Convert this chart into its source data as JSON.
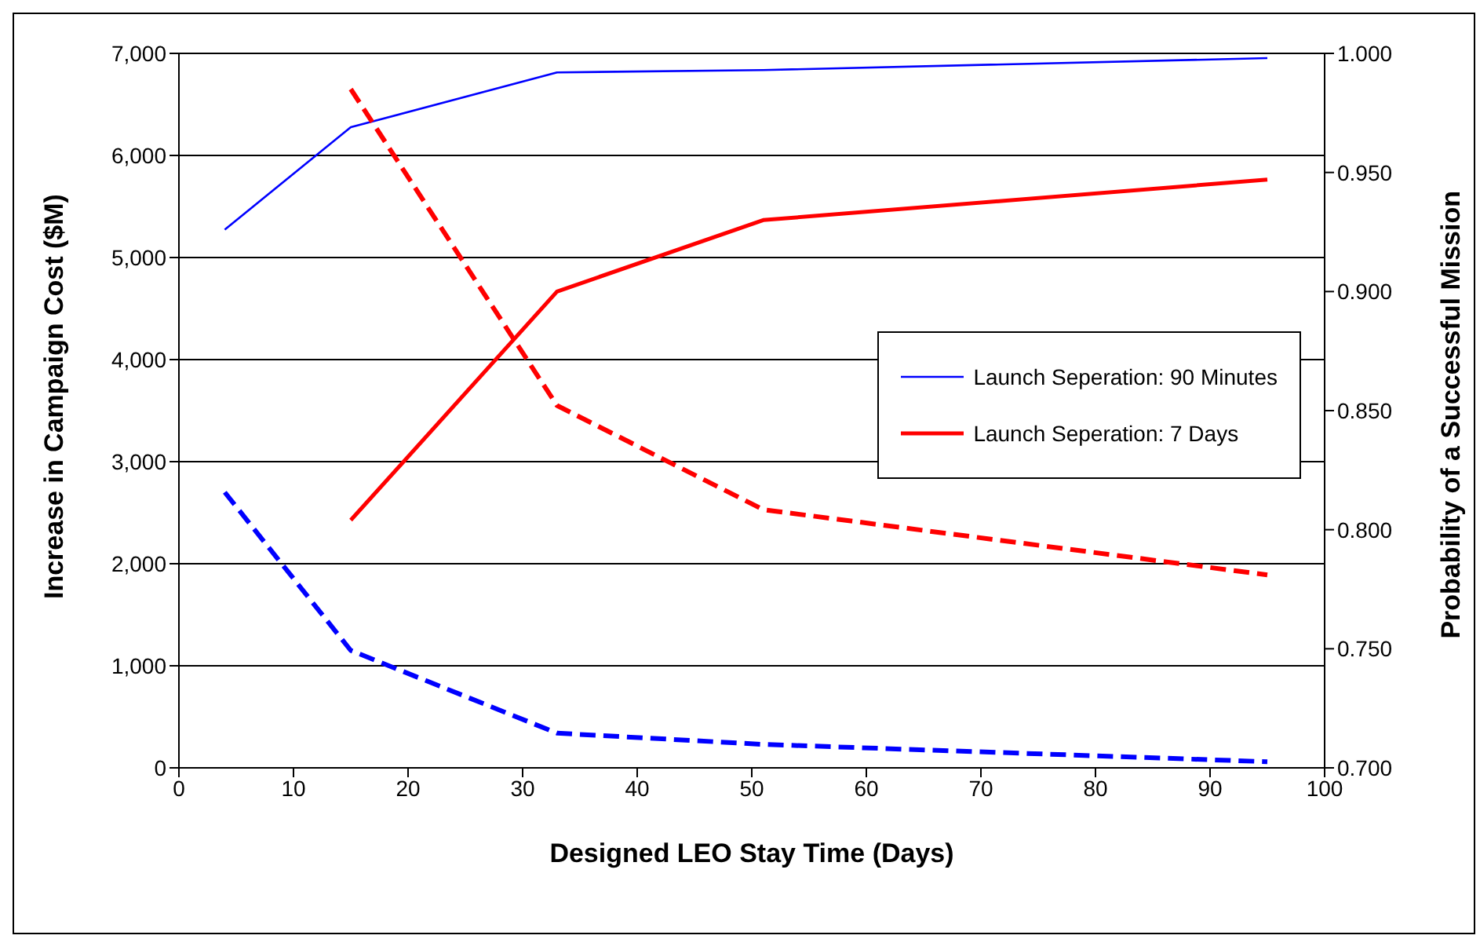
{
  "chart_data": {
    "type": "line",
    "xlabel": "Designed LEO Stay Time (Days)",
    "ylabel": "Increase in Campaign Cost ($M)",
    "y2label": "Probability of a Successful Mission",
    "series": [
      {
        "name": "Launch Seperation: 90 Minutes",
        "color": "#0000ff",
        "axis": "y2",
        "line_style": "solid",
        "x": [
          4,
          15,
          33,
          51,
          95
        ],
        "values": [
          0.926,
          0.969,
          0.992,
          0.993,
          0.998
        ]
      },
      {
        "name": "Launch Seperation: 7 Days",
        "color": "#ff0000",
        "axis": "y2",
        "line_style": "solid",
        "x": [
          15,
          33,
          51,
          95
        ],
        "values": [
          0.804,
          0.9,
          0.93,
          0.947
        ]
      },
      {
        "color": "#0000ff",
        "axis": "y",
        "line_style": "dashed",
        "x": [
          4,
          15,
          33,
          51,
          95
        ],
        "values": [
          2700,
          1150,
          340,
          230,
          60
        ]
      },
      {
        "color": "#ff0000",
        "axis": "y",
        "line_style": "dashed",
        "x": [
          15,
          33,
          51,
          95
        ],
        "values": [
          6650,
          3550,
          2530,
          1890
        ]
      }
    ],
    "xlim": [
      0,
      100
    ],
    "xticks": [
      0,
      10,
      20,
      30,
      40,
      50,
      60,
      70,
      80,
      90,
      100
    ],
    "ylim": [
      0,
      7000
    ],
    "yticks": [
      0,
      {
        "value": 1000,
        "label": "1,000"
      },
      {
        "value": 2000,
        "label": "2,000"
      },
      {
        "value": 3000,
        "label": "3,000"
      },
      {
        "value": 4000,
        "label": "4,000"
      },
      {
        "value": 5000,
        "label": "5,000"
      },
      {
        "value": 6000,
        "label": "6,000"
      },
      {
        "value": 7000,
        "label": "7,000"
      }
    ],
    "y2lim": [
      0.7,
      1.0
    ],
    "y2ticks": [
      {
        "value": 0.7,
        "label": "0.700"
      },
      {
        "value": 0.75,
        "label": "0.750"
      },
      {
        "value": 0.8,
        "label": "0.800"
      },
      {
        "value": 0.85,
        "label": "0.850"
      },
      {
        "value": 0.9,
        "label": "0.900"
      },
      {
        "value": 0.95,
        "label": "0.950"
      },
      {
        "value": 1.0,
        "label": "1.000"
      }
    ],
    "grid": "y",
    "legend": "right",
    "marker": "none"
  }
}
